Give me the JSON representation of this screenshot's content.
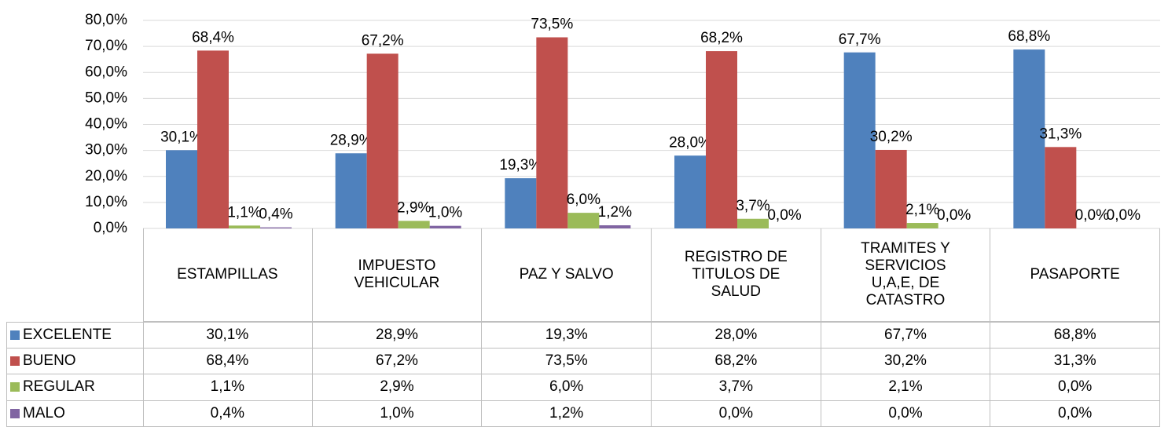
{
  "chart_data": {
    "type": "bar",
    "categories": [
      "ESTAMPILLAS",
      "IMPUESTO VEHICULAR",
      "PAZ Y SALVO",
      "REGISTRO DE TITULOS DE SALUD",
      "TRAMITES Y SERVICIOS U,A,E, DE CATASTRO",
      "PASAPORTE"
    ],
    "series": [
      {
        "name": "EXCELENTE",
        "color": "#4f81bd",
        "values": [
          30.1,
          28.9,
          19.3,
          28.0,
          67.7,
          68.8
        ],
        "value_labels": [
          "30,1%",
          "28,9%",
          "19,3%",
          "28,0%",
          "67,7%",
          "68,8%"
        ]
      },
      {
        "name": "BUENO",
        "color": "#c0504d",
        "values": [
          68.4,
          67.2,
          73.5,
          68.2,
          30.2,
          31.3
        ],
        "value_labels": [
          "68,4%",
          "67,2%",
          "73,5%",
          "68,2%",
          "30,2%",
          "31,3%"
        ]
      },
      {
        "name": "REGULAR",
        "color": "#9bbb59",
        "values": [
          1.1,
          2.9,
          6.0,
          3.7,
          2.1,
          0.0
        ],
        "value_labels": [
          "1,1%",
          "2,9%",
          "6,0%",
          "3,7%",
          "2,1%",
          "0,0%"
        ]
      },
      {
        "name": "MALO",
        "color": "#8064a2",
        "values": [
          0.4,
          1.0,
          1.2,
          0.0,
          0.0,
          0.0
        ],
        "value_labels": [
          "0,4%",
          "1,0%",
          "1,2%",
          "0,0%",
          "0,0%",
          "0,0%"
        ]
      }
    ],
    "ylim": [
      0,
      80
    ],
    "yticks": [
      {
        "value": 0,
        "label": "0,0%"
      },
      {
        "value": 10,
        "label": "10,0%"
      },
      {
        "value": 20,
        "label": "20,0%"
      },
      {
        "value": 30,
        "label": "30,0%"
      },
      {
        "value": 40,
        "label": "40,0%"
      },
      {
        "value": 50,
        "label": "50,0%"
      },
      {
        "value": 60,
        "label": "60,0%"
      },
      {
        "value": 70,
        "label": "70,0%"
      },
      {
        "value": 80,
        "label": "80,0%"
      }
    ],
    "grid": true
  }
}
